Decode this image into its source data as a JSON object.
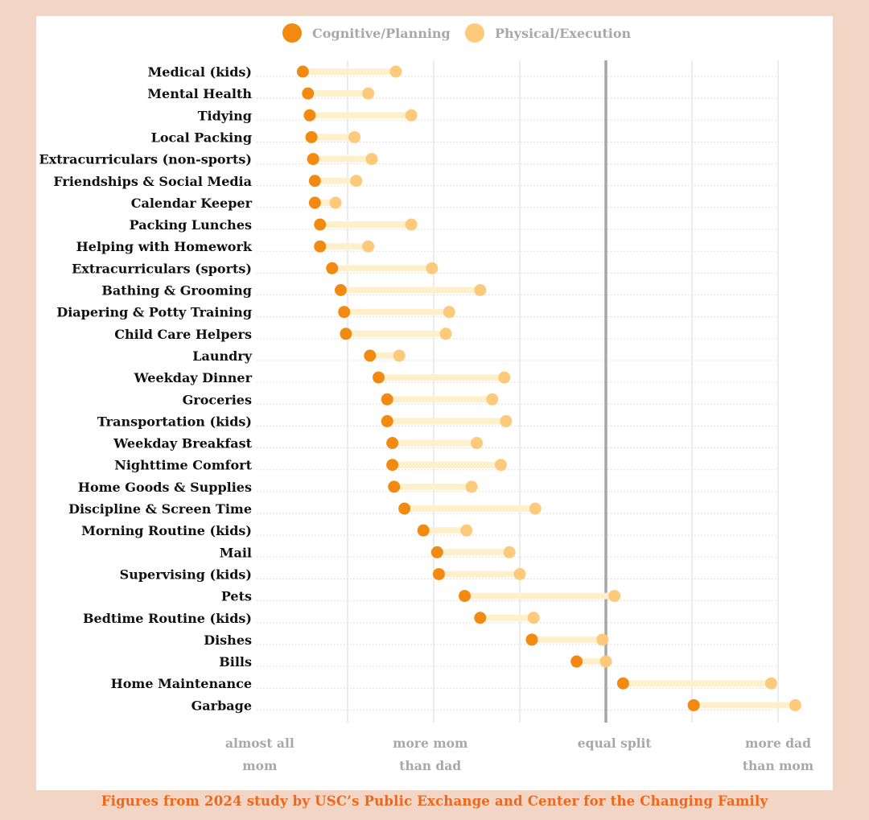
{
  "legend": {
    "cognitive": "Cognitive/Planning",
    "physical": "Physical/Execution"
  },
  "source": "Figures from 2024 study by USC’s Public Exchange and Center for the Changing Family",
  "colors": {
    "cognitive": "#f28a12",
    "physical": "#fdc97a",
    "connector": "#fff0cc",
    "equal_line": "#a6a6a6",
    "background": "#f2d5c4",
    "caption": "#f0661b"
  },
  "chart_data": {
    "type": "dumbbell",
    "xlim": [
      0,
      4.3
    ],
    "x_gridlines": [
      0.5,
      1.0,
      1.5,
      2.5,
      3.0
    ],
    "equal_split": 2.0,
    "x_tick_labels": [
      {
        "x": -0.01,
        "line1": "almost all",
        "line2": "mom"
      },
      {
        "x": 0.98,
        "line1": "more mom",
        "line2": "than dad"
      },
      {
        "x": 2.05,
        "line1": "equal split",
        "line2": ""
      },
      {
        "x": 3.0,
        "line1": "more dad",
        "line2": "than mom"
      }
    ],
    "series": [
      {
        "name": "Cognitive/Planning",
        "key": "cognitive"
      },
      {
        "name": "Physical/Execution",
        "key": "physical"
      }
    ],
    "categories": [
      "Medical (kids)",
      "Mental Health",
      "Tidying",
      "Local Packing",
      "Extracurriculars (non-sports)",
      "Friendships & Social Media",
      "Calendar Keeper",
      "Packing Lunches",
      "Helping with Homework",
      "Extracurriculars (sports)",
      "Bathing & Grooming",
      "Diapering & Potty Training",
      "Child Care Helpers",
      "Laundry",
      "Weekday Dinner",
      "Groceries",
      "Transportation (kids)",
      "Weekday Breakfast",
      "Nighttime Comfort",
      "Home Goods & Supplies",
      "Discipline & Screen Time",
      "Morning Routine (kids)",
      "Mail",
      "Supervising (kids)",
      "Pets",
      "Bedtime Routine (kids)",
      "Dishes",
      "Bills",
      "Home Maintenance",
      "Garbage"
    ],
    "cognitive": [
      0.24,
      0.27,
      0.28,
      0.29,
      0.3,
      0.31,
      0.31,
      0.34,
      0.34,
      0.41,
      0.46,
      0.48,
      0.49,
      0.63,
      0.68,
      0.73,
      0.73,
      0.76,
      0.76,
      0.77,
      0.83,
      0.94,
      1.02,
      1.03,
      1.18,
      1.27,
      1.57,
      1.83,
      2.1,
      2.51
    ],
    "physical": [
      0.78,
      0.62,
      0.87,
      0.54,
      0.64,
      0.55,
      0.43,
      0.87,
      0.62,
      0.99,
      1.27,
      1.09,
      1.07,
      0.8,
      1.41,
      1.34,
      1.42,
      1.25,
      1.39,
      1.22,
      1.59,
      1.19,
      1.44,
      1.5,
      2.05,
      1.58,
      1.98,
      2.0,
      2.96,
      3.1
    ]
  }
}
